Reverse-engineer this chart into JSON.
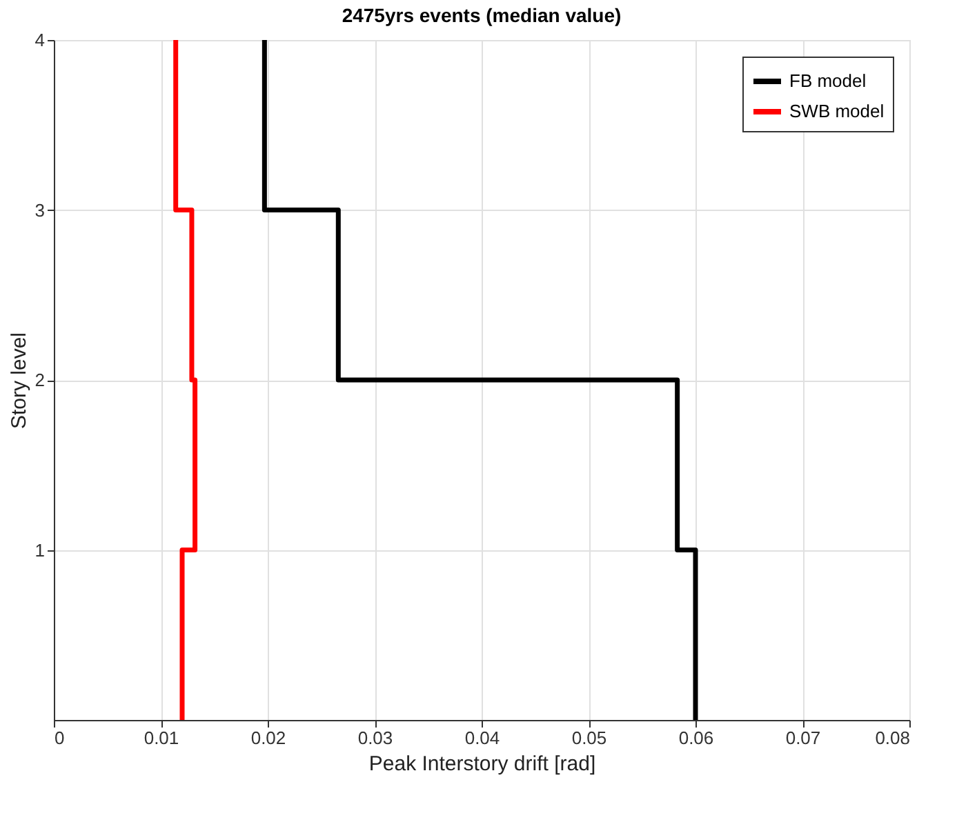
{
  "chart_data": {
    "type": "line",
    "title": "2475yrs events (median value)",
    "xlabel": "Peak Interstory drift [rad]",
    "ylabel": "Story level",
    "series": [
      {
        "name": "FB model",
        "color": "#000000",
        "x": [
          0.06,
          0.06,
          0.0583,
          0.0583,
          0.0266,
          0.0266,
          0.0197,
          0.0197
        ],
        "values": [
          0,
          1,
          1,
          2,
          2,
          3,
          3,
          4
        ]
      },
      {
        "name": "SWB model",
        "color": "#ff0000",
        "x": [
          0.012,
          0.012,
          0.0132,
          0.0132,
          0.0129,
          0.0129,
          0.0114,
          0.0114
        ],
        "values": [
          0,
          1,
          1,
          2,
          2,
          3,
          3,
          4
        ]
      }
    ],
    "xlim": [
      0,
      0.08
    ],
    "xticks": [
      0,
      0.01,
      0.02,
      0.03,
      0.04,
      0.05,
      0.06,
      0.07,
      0.08
    ],
    "ylim": [
      0,
      4
    ],
    "yticks": [
      1,
      2,
      3,
      4
    ],
    "grid": true,
    "legend": "top right",
    "marker": "none",
    "line_style": "solid"
  }
}
